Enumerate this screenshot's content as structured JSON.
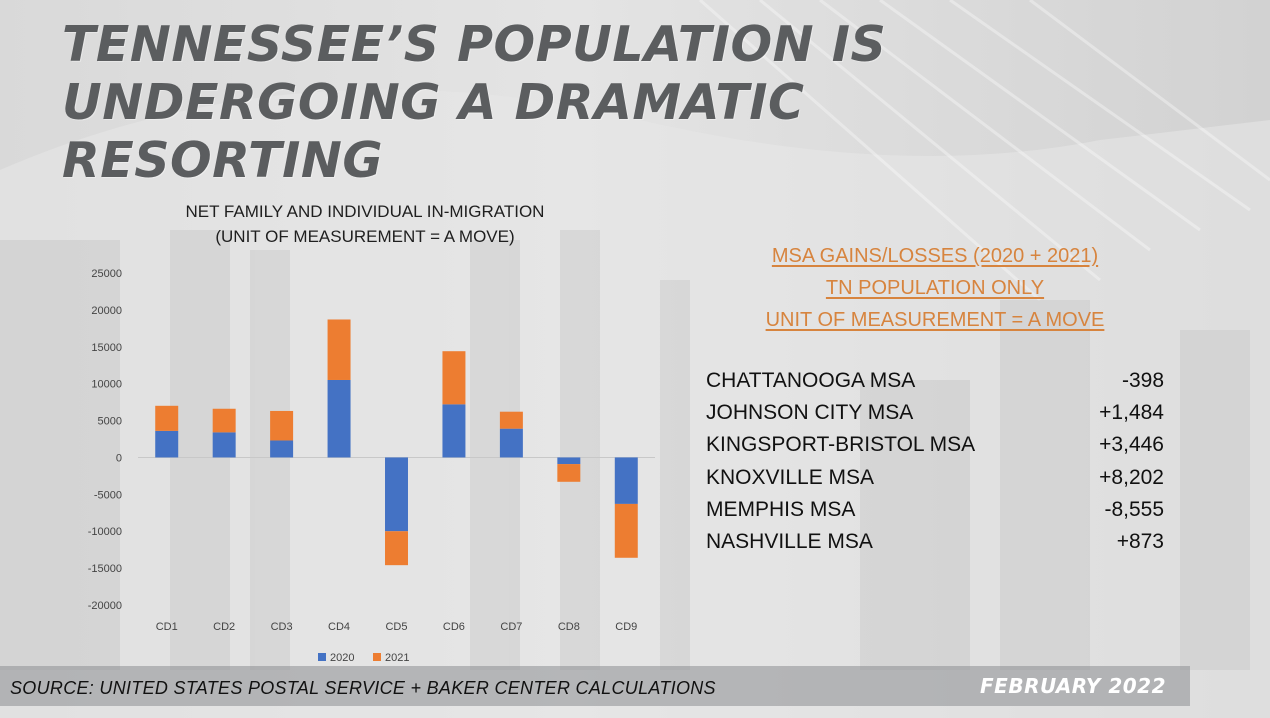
{
  "slide": {
    "title_lines": [
      "TENNESSEE’S POPULATION IS",
      "UNDERGOING A DRAMATIC",
      "RESORTING"
    ],
    "source": "SOURCE: UNITED STATES POSTAL SERVICE + BAKER CENTER CALCULATIONS",
    "date": "FEBRUARY 2022"
  },
  "msa": {
    "heading_lines": [
      "MSA GAINS/LOSSES (2020 + 2021)",
      "TN POPULATION ONLY",
      "UNIT OF MEASUREMENT = A MOVE"
    ],
    "heading_color": "#d7843e",
    "rows": [
      {
        "name": "CHATTANOOGA MSA",
        "value": "-398"
      },
      {
        "name": "JOHNSON CITY MSA",
        "value": "+1,484"
      },
      {
        "name": "KINGSPORT-BRISTOL MSA",
        "value": "+3,446"
      },
      {
        "name": "KNOXVILLE MSA",
        "value": "+8,202"
      },
      {
        "name": "MEMPHIS MSA",
        "value": "-8,555"
      },
      {
        "name": "NASHVILLE MSA",
        "value": "+873"
      }
    ]
  },
  "chart_data": {
    "type": "bar",
    "stacked": true,
    "title_lines": [
      "NET FAMILY AND INDIVIDUAL IN-MIGRATION",
      "(UNIT OF MEASUREMENT = A MOVE)"
    ],
    "categories": [
      "CD1",
      "CD2",
      "CD3",
      "CD4",
      "CD5",
      "CD6",
      "CD7",
      "CD8",
      "CD9"
    ],
    "series": [
      {
        "name": "2020",
        "color": "#4472c4",
        "values": [
          3600,
          3400,
          2300,
          10500,
          -10000,
          7200,
          3900,
          -900,
          -6300
        ]
      },
      {
        "name": "2021",
        "color": "#ed7d31",
        "values": [
          3400,
          3200,
          4000,
          8200,
          -4600,
          7200,
          2300,
          -2400,
          -7300
        ]
      }
    ],
    "ylim": [
      -20000,
      25000
    ],
    "yticks": [
      25000,
      20000,
      15000,
      10000,
      5000,
      0,
      -5000,
      -10000,
      -15000,
      -20000
    ],
    "legend_position": "bottom",
    "grid": false
  }
}
